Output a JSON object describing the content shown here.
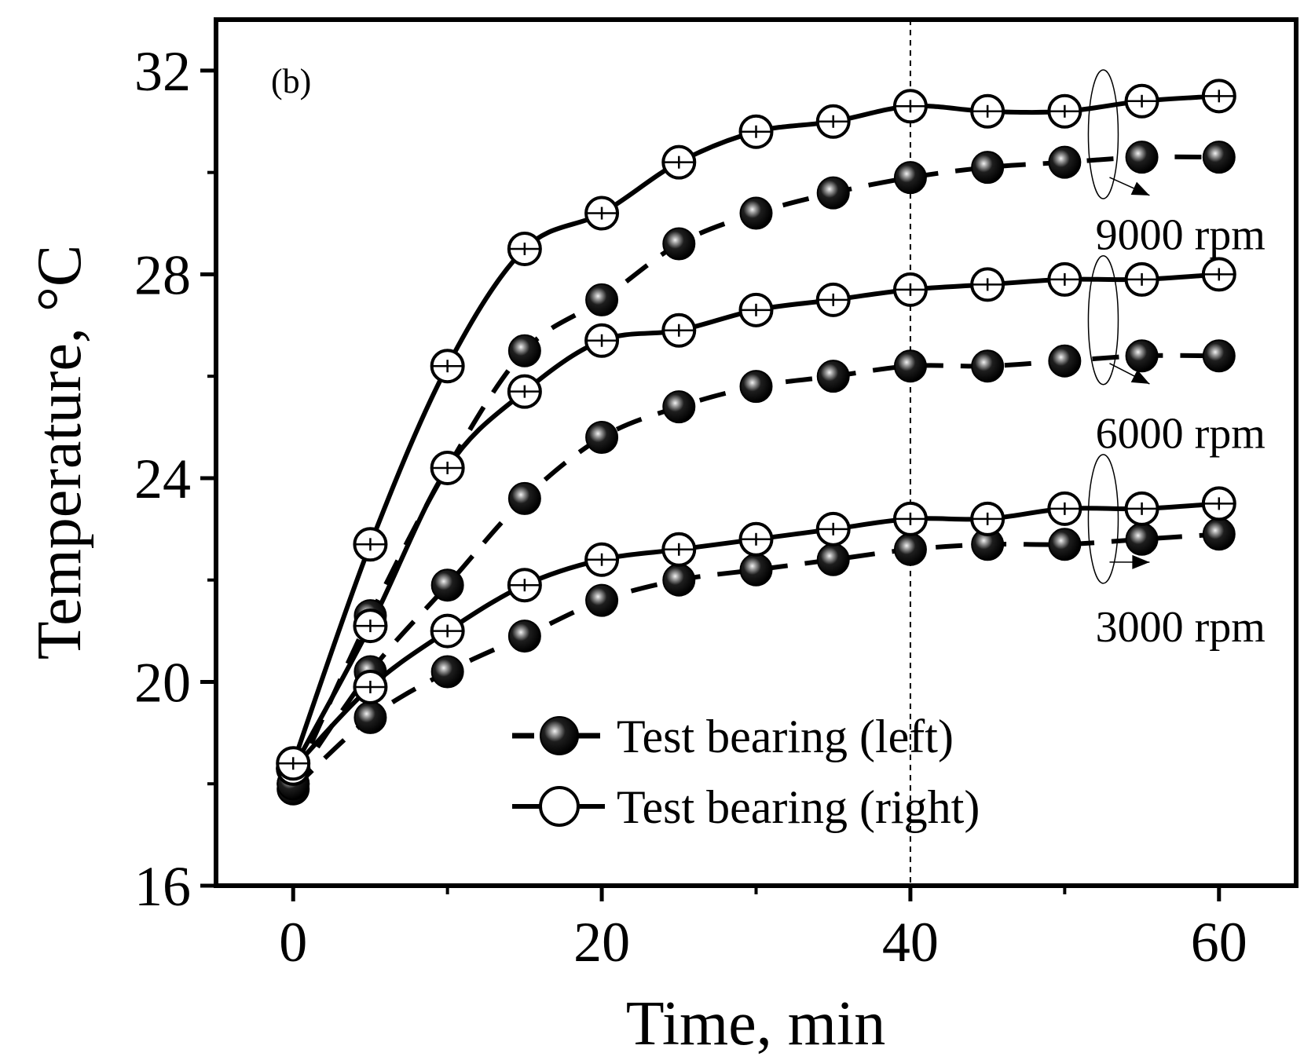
{
  "chart_data": {
    "type": "line",
    "panel_label": "(b)",
    "xlabel": "Time, min",
    "ylabel": "Temperature, °C",
    "xlim": [
      -5,
      65
    ],
    "ylim": [
      16,
      33
    ],
    "xticks": [
      0,
      20,
      40,
      60
    ],
    "yticks": [
      16,
      20,
      24,
      28,
      32
    ],
    "reference_line_x": 40,
    "x": [
      0,
      5,
      10,
      15,
      20,
      25,
      30,
      35,
      40,
      45,
      50,
      55,
      60
    ],
    "legend": {
      "position": "bottom-center",
      "entries": [
        {
          "label": "Test bearing (left)",
          "style": "dashed",
          "marker": "filled-sphere"
        },
        {
          "label": "Test bearing (right)",
          "style": "solid",
          "marker": "open-circle"
        }
      ]
    },
    "series": [
      {
        "name": "Test bearing (left)",
        "speed": "3000 rpm",
        "style": "dashed",
        "marker": "filled",
        "values": [
          17.9,
          19.3,
          20.2,
          20.9,
          21.6,
          22.0,
          22.2,
          22.4,
          22.6,
          22.7,
          22.7,
          22.8,
          22.9
        ]
      },
      {
        "name": "Test bearing (right)",
        "speed": "3000 rpm",
        "style": "solid",
        "marker": "open",
        "values": [
          18.3,
          19.9,
          21.0,
          21.9,
          22.4,
          22.6,
          22.8,
          23.0,
          23.2,
          23.2,
          23.4,
          23.4,
          23.5
        ]
      },
      {
        "name": "Test bearing (left)",
        "speed": "6000 rpm",
        "style": "dashed",
        "marker": "filled",
        "values": [
          18.0,
          20.2,
          21.9,
          23.6,
          24.8,
          25.4,
          25.8,
          26.0,
          26.2,
          26.2,
          26.3,
          26.4,
          26.4
        ]
      },
      {
        "name": "Test bearing (right)",
        "speed": "6000 rpm",
        "style": "solid",
        "marker": "open",
        "values": [
          18.3,
          21.1,
          24.2,
          25.7,
          26.7,
          26.9,
          27.3,
          27.5,
          27.7,
          27.8,
          27.9,
          27.9,
          28.0
        ]
      },
      {
        "name": "Test bearing (left)",
        "speed": "9000 rpm",
        "style": "dashed",
        "marker": "filled",
        "values": [
          18.0,
          21.3,
          24.2,
          26.5,
          27.5,
          28.6,
          29.2,
          29.6,
          29.9,
          30.1,
          30.2,
          30.3,
          30.3
        ]
      },
      {
        "name": "Test bearing (right)",
        "speed": "9000 rpm",
        "style": "solid",
        "marker": "open",
        "values": [
          18.4,
          22.7,
          26.2,
          28.5,
          29.2,
          30.2,
          30.8,
          31.0,
          31.3,
          31.2,
          31.2,
          31.4,
          31.5
        ]
      }
    ],
    "annotations": [
      {
        "text": "9000 rpm",
        "x": 57.5,
        "y": 28.8,
        "ellipse_center": [
          52.5,
          30.75
        ],
        "arrow_to": [
          55.5,
          29.55
        ]
      },
      {
        "text": "6000 rpm",
        "x": 57.5,
        "y": 24.9,
        "ellipse_center": [
          52.5,
          27.1
        ],
        "arrow_to": [
          55.5,
          25.85
        ]
      },
      {
        "text": "3000 rpm",
        "x": 57.5,
        "y": 21.1,
        "ellipse_center": [
          52.5,
          23.2
        ],
        "arrow_to": [
          55.5,
          22.35
        ]
      }
    ]
  }
}
